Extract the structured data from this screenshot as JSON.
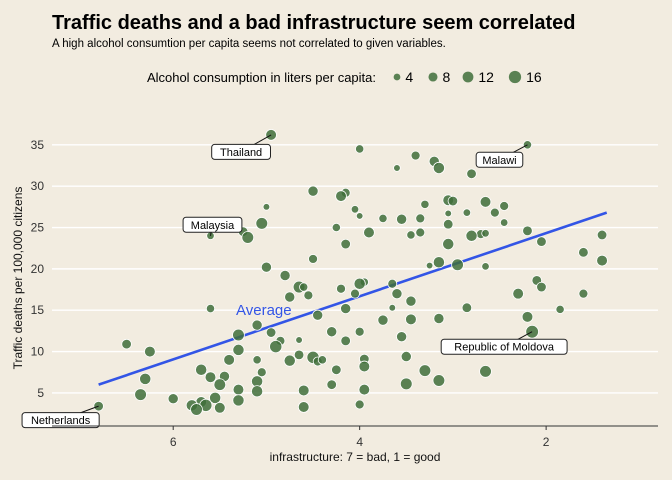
{
  "chart_data": {
    "type": "scatter",
    "title": "Traffic deaths and a bad infrastructure seem correlated",
    "subtitle": "A high alcohol consumtion per capita seems not correlated to given variables.",
    "xlabel": "infrastructure: 7 = bad, 1 = good",
    "ylabel": "Traffic deaths per 100,000 citizens",
    "x_reversed": true,
    "xlim": [
      7.3,
      0.8
    ],
    "ylim": [
      1,
      38
    ],
    "x_ticks": [
      6,
      4,
      2
    ],
    "x_tick_labels": [
      "6",
      "4",
      "2"
    ],
    "y_ticks": [
      5,
      10,
      15,
      20,
      25,
      30,
      35
    ],
    "y_tick_labels": [
      "5",
      "10",
      "15",
      "20",
      "25",
      "30",
      "35"
    ],
    "grid": "horizontal",
    "legend": {
      "title": "Alcohol consumption in liters per capita:",
      "position": "top",
      "items": [
        {
          "label": "4",
          "value": 4
        },
        {
          "label": "8",
          "value": 8
        },
        {
          "label": "12",
          "value": 12
        },
        {
          "label": "16",
          "value": 16
        }
      ]
    },
    "colors": {
      "point": "#3f6e3a",
      "point_stroke": "#ffffff",
      "trend": "#3355e6",
      "grid": "#ffffff",
      "background": "#f2ece0"
    },
    "trend_line": {
      "x": [
        6.8,
        1.35
      ],
      "y": [
        6.0,
        26.8
      ],
      "label": "Average"
    },
    "annotations": [
      {
        "label": "Thailand",
        "x": 4.95,
        "y": 36.2
      },
      {
        "label": "Malawi",
        "x": 2.2,
        "y": 35.0
      },
      {
        "label": "Malaysia",
        "x": 5.6,
        "y": 24.0
      },
      {
        "label": "Republic of Moldova",
        "x": 2.15,
        "y": 12.4
      },
      {
        "label": "Netherlands",
        "x": 6.8,
        "y": 3.4
      }
    ],
    "points": [
      {
        "x": 4.95,
        "y": 36.2,
        "size": 9
      },
      {
        "x": 2.2,
        "y": 35.0,
        "size": 5
      },
      {
        "x": 5.6,
        "y": 24.0,
        "size": 4
      },
      {
        "x": 2.15,
        "y": 12.4,
        "size": 13
      },
      {
        "x": 6.8,
        "y": 3.4,
        "size": 7
      },
      {
        "x": 4.0,
        "y": 34.5,
        "size": 5
      },
      {
        "x": 3.4,
        "y": 33.7,
        "size": 6
      },
      {
        "x": 3.2,
        "y": 33.0,
        "size": 8
      },
      {
        "x": 3.15,
        "y": 32.2,
        "size": 10
      },
      {
        "x": 3.6,
        "y": 32.2,
        "size": 3
      },
      {
        "x": 2.8,
        "y": 31.5,
        "size": 7
      },
      {
        "x": 4.5,
        "y": 29.4,
        "size": 8
      },
      {
        "x": 4.15,
        "y": 29.2,
        "size": 6
      },
      {
        "x": 4.2,
        "y": 28.8,
        "size": 9
      },
      {
        "x": 3.05,
        "y": 28.3,
        "size": 9
      },
      {
        "x": 3.0,
        "y": 28.2,
        "size": 7
      },
      {
        "x": 2.65,
        "y": 28.1,
        "size": 9
      },
      {
        "x": 3.3,
        "y": 27.8,
        "size": 5
      },
      {
        "x": 2.45,
        "y": 27.6,
        "size": 6
      },
      {
        "x": 5.0,
        "y": 27.5,
        "size": 3
      },
      {
        "x": 4.05,
        "y": 27.2,
        "size": 4
      },
      {
        "x": 2.55,
        "y": 26.8,
        "size": 6
      },
      {
        "x": 2.85,
        "y": 26.8,
        "size": 4
      },
      {
        "x": 3.05,
        "y": 26.7,
        "size": 3
      },
      {
        "x": 4.0,
        "y": 26.4,
        "size": 3
      },
      {
        "x": 3.35,
        "y": 26.1,
        "size": 6
      },
      {
        "x": 3.55,
        "y": 26.0,
        "size": 8
      },
      {
        "x": 3.75,
        "y": 26.1,
        "size": 5
      },
      {
        "x": 2.45,
        "y": 25.6,
        "size": 4
      },
      {
        "x": 3.05,
        "y": 25.4,
        "size": 7
      },
      {
        "x": 5.05,
        "y": 25.5,
        "size": 11
      },
      {
        "x": 5.25,
        "y": 24.5,
        "size": 7
      },
      {
        "x": 5.2,
        "y": 23.8,
        "size": 11
      },
      {
        "x": 4.25,
        "y": 25.0,
        "size": 5
      },
      {
        "x": 3.9,
        "y": 24.4,
        "size": 9
      },
      {
        "x": 3.35,
        "y": 24.4,
        "size": 6
      },
      {
        "x": 3.45,
        "y": 24.1,
        "size": 5
      },
      {
        "x": 2.7,
        "y": 24.2,
        "size": 6
      },
      {
        "x": 2.2,
        "y": 24.6,
        "size": 7
      },
      {
        "x": 2.8,
        "y": 24.0,
        "size": 10
      },
      {
        "x": 2.65,
        "y": 24.3,
        "size": 4
      },
      {
        "x": 1.4,
        "y": 24.1,
        "size": 7
      },
      {
        "x": 2.05,
        "y": 23.3,
        "size": 7
      },
      {
        "x": 3.05,
        "y": 23.0,
        "size": 10
      },
      {
        "x": 4.15,
        "y": 23.0,
        "size": 7
      },
      {
        "x": 1.6,
        "y": 22.0,
        "size": 7
      },
      {
        "x": 1.4,
        "y": 21.0,
        "size": 9
      },
      {
        "x": 4.5,
        "y": 21.2,
        "size": 6
      },
      {
        "x": 3.15,
        "y": 20.8,
        "size": 10
      },
      {
        "x": 2.95,
        "y": 20.5,
        "size": 11
      },
      {
        "x": 3.25,
        "y": 20.4,
        "size": 3
      },
      {
        "x": 2.65,
        "y": 20.3,
        "size": 4
      },
      {
        "x": 5.0,
        "y": 20.2,
        "size": 8
      },
      {
        "x": 4.8,
        "y": 19.2,
        "size": 8
      },
      {
        "x": 3.95,
        "y": 18.4,
        "size": 5
      },
      {
        "x": 4.0,
        "y": 18.2,
        "size": 10
      },
      {
        "x": 3.65,
        "y": 18.2,
        "size": 6
      },
      {
        "x": 4.65,
        "y": 17.8,
        "size": 11
      },
      {
        "x": 4.2,
        "y": 17.6,
        "size": 6
      },
      {
        "x": 2.1,
        "y": 18.6,
        "size": 7
      },
      {
        "x": 2.05,
        "y": 17.8,
        "size": 7
      },
      {
        "x": 4.55,
        "y": 16.8,
        "size": 6
      },
      {
        "x": 4.6,
        "y": 17.8,
        "size": 5
      },
      {
        "x": 3.6,
        "y": 17.0,
        "size": 8
      },
      {
        "x": 4.05,
        "y": 17.0,
        "size": 6
      },
      {
        "x": 4.75,
        "y": 16.6,
        "size": 8
      },
      {
        "x": 2.3,
        "y": 17.0,
        "size": 9
      },
      {
        "x": 1.6,
        "y": 17.0,
        "size": 6
      },
      {
        "x": 3.45,
        "y": 16.1,
        "size": 8
      },
      {
        "x": 5.6,
        "y": 15.2,
        "size": 5
      },
      {
        "x": 4.15,
        "y": 15.2,
        "size": 8
      },
      {
        "x": 3.65,
        "y": 15.3,
        "size": 3
      },
      {
        "x": 2.85,
        "y": 15.3,
        "size": 7
      },
      {
        "x": 1.85,
        "y": 15.1,
        "size": 5
      },
      {
        "x": 4.45,
        "y": 14.4,
        "size": 8
      },
      {
        "x": 3.75,
        "y": 13.8,
        "size": 8
      },
      {
        "x": 3.45,
        "y": 13.9,
        "size": 9
      },
      {
        "x": 3.15,
        "y": 14.0,
        "size": 8
      },
      {
        "x": 2.2,
        "y": 14.2,
        "size": 9
      },
      {
        "x": 5.1,
        "y": 13.2,
        "size": 8
      },
      {
        "x": 4.95,
        "y": 12.3,
        "size": 7
      },
      {
        "x": 5.3,
        "y": 12.0,
        "size": 11
      },
      {
        "x": 4.3,
        "y": 12.4,
        "size": 8
      },
      {
        "x": 4.0,
        "y": 12.4,
        "size": 6
      },
      {
        "x": 4.15,
        "y": 11.3,
        "size": 7
      },
      {
        "x": 3.55,
        "y": 11.8,
        "size": 8
      },
      {
        "x": 4.85,
        "y": 11.3,
        "size": 6
      },
      {
        "x": 6.5,
        "y": 10.9,
        "size": 7
      },
      {
        "x": 6.25,
        "y": 10.0,
        "size": 9
      },
      {
        "x": 5.3,
        "y": 10.2,
        "size": 10
      },
      {
        "x": 4.9,
        "y": 10.6,
        "size": 12
      },
      {
        "x": 4.65,
        "y": 11.4,
        "size": 3
      },
      {
        "x": 3.0,
        "y": 10.6,
        "size": 8
      },
      {
        "x": 2.85,
        "y": 10.3,
        "size": 7
      },
      {
        "x": 4.65,
        "y": 9.6,
        "size": 7
      },
      {
        "x": 4.75,
        "y": 8.9,
        "size": 10
      },
      {
        "x": 4.5,
        "y": 9.3,
        "size": 12
      },
      {
        "x": 4.45,
        "y": 8.8,
        "size": 6
      },
      {
        "x": 5.4,
        "y": 9.0,
        "size": 9
      },
      {
        "x": 5.1,
        "y": 9.0,
        "size": 5
      },
      {
        "x": 4.4,
        "y": 9.0,
        "size": 5
      },
      {
        "x": 3.95,
        "y": 9.1,
        "size": 7
      },
      {
        "x": 3.5,
        "y": 9.4,
        "size": 8
      },
      {
        "x": 5.7,
        "y": 7.8,
        "size": 10
      },
      {
        "x": 5.45,
        "y": 7.0,
        "size": 8
      },
      {
        "x": 5.05,
        "y": 7.5,
        "size": 6
      },
      {
        "x": 4.25,
        "y": 7.8,
        "size": 7
      },
      {
        "x": 3.95,
        "y": 8.2,
        "size": 9
      },
      {
        "x": 3.3,
        "y": 7.7,
        "size": 11
      },
      {
        "x": 2.65,
        "y": 7.6,
        "size": 11
      },
      {
        "x": 6.3,
        "y": 6.7,
        "size": 10
      },
      {
        "x": 5.6,
        "y": 6.9,
        "size": 9
      },
      {
        "x": 5.1,
        "y": 6.4,
        "size": 10
      },
      {
        "x": 4.3,
        "y": 6.0,
        "size": 7
      },
      {
        "x": 3.5,
        "y": 6.1,
        "size": 11
      },
      {
        "x": 3.15,
        "y": 6.5,
        "size": 11
      },
      {
        "x": 5.5,
        "y": 6.0,
        "size": 11
      },
      {
        "x": 5.3,
        "y": 5.4,
        "size": 9
      },
      {
        "x": 5.1,
        "y": 5.2,
        "size": 10
      },
      {
        "x": 4.6,
        "y": 5.3,
        "size": 9
      },
      {
        "x": 3.95,
        "y": 5.4,
        "size": 9
      },
      {
        "x": 6.35,
        "y": 4.8,
        "size": 11
      },
      {
        "x": 6.0,
        "y": 4.3,
        "size": 8
      },
      {
        "x": 5.55,
        "y": 4.4,
        "size": 10
      },
      {
        "x": 5.3,
        "y": 4.1,
        "size": 10
      },
      {
        "x": 5.7,
        "y": 3.9,
        "size": 9
      },
      {
        "x": 5.65,
        "y": 3.5,
        "size": 12
      },
      {
        "x": 5.8,
        "y": 3.5,
        "size": 10
      },
      {
        "x": 5.5,
        "y": 3.2,
        "size": 9
      },
      {
        "x": 5.75,
        "y": 3.0,
        "size": 11
      },
      {
        "x": 4.6,
        "y": 3.3,
        "size": 9
      },
      {
        "x": 4.0,
        "y": 3.6,
        "size": 6
      }
    ]
  }
}
